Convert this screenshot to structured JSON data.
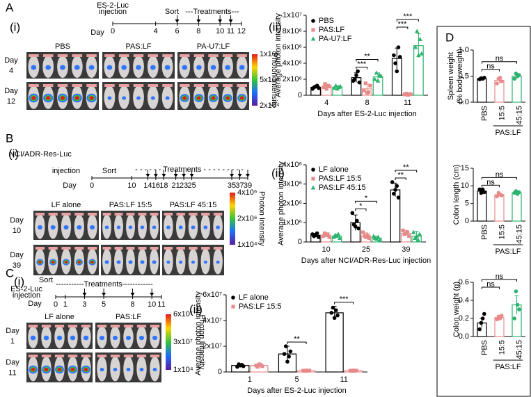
{
  "panels": {
    "A": {
      "label": "A",
      "sub_i": "(i)",
      "sub_ii": "(ii)",
      "timeline": {
        "pre": [
          "ES-2-Luc",
          "injection"
        ],
        "sort": "Sort",
        "treatments": "---Treatments---",
        "day": "Day",
        "days": [
          0,
          4,
          6,
          8,
          10,
          11,
          12
        ]
      },
      "images": {
        "columns": [
          "PBS",
          "PAS:LF",
          "PA-U7:LF"
        ],
        "rows": [
          [
            "Day",
            "4"
          ],
          [
            "Day",
            "12"
          ]
        ],
        "scale": [
          "1x10⁷",
          "5x10⁶",
          "2x10⁴"
        ],
        "scale_title": "Photon Intensity"
      }
    },
    "B": {
      "label": "B",
      "sub_i": "(i)",
      "sub_ii": "(ii)",
      "timeline": {
        "pre": [
          "NCI/ADR-Res-Luc",
          "injection"
        ],
        "sort": "Sort",
        "treatments": "- - - - - -  Treatments  - - - - - - - - -",
        "day": "Day",
        "days": [
          0,
          10,
          14,
          16,
          18,
          21,
          23,
          25,
          35,
          37,
          39
        ]
      },
      "images": {
        "columns": [
          "LF alone",
          "PAS:LF 15:5",
          "PAS:LF 45:15"
        ],
        "rows": [
          [
            "Day",
            "10"
          ],
          [
            "Day",
            "39"
          ]
        ],
        "scale": [
          "4x10⁶",
          "2x10⁶",
          "1x10⁴"
        ],
        "scale_title": "Photon Intensity"
      }
    },
    "C": {
      "label": "C",
      "sub_i": "(i)",
      "sub_ii": "(ii)",
      "timeline": {
        "pre": [
          "ES-2-Luc",
          "injection"
        ],
        "sort": "Sort",
        "treatments": "-----------Treatments------------",
        "day": "Day",
        "days": [
          0,
          1,
          3,
          5,
          8,
          10,
          11
        ]
      },
      "images": {
        "columns": [
          "LF alone",
          "PAS:LF"
        ],
        "rows": [
          [
            "Day",
            "1"
          ],
          [
            "Day",
            "11"
          ]
        ],
        "scale": [
          "6x10⁷",
          "3x10⁷",
          "1x10⁴"
        ],
        "scale_title": "Photon Intensity"
      }
    },
    "D": {
      "label": "D"
    }
  },
  "chart_data": [
    {
      "type": "bar",
      "y_label": [
        "Average photon intensity"
      ],
      "x_label": "Days after ES-2-Luc injection",
      "legend": "upper left",
      "categories": [
        "4",
        "8",
        "11"
      ],
      "ylim": [
        0,
        10000000
      ],
      "yticks": [
        0,
        {
          "value": 2000000,
          "label": "2x10⁶"
        },
        {
          "value": 4000000,
          "label": "4x10⁶"
        },
        {
          "value": 6000000,
          "label": "6x10⁶"
        },
        {
          "value": 8000000,
          "label": "8x10⁶"
        },
        {
          "value": 10000000,
          "label": "1x10⁷"
        }
      ],
      "series": [
        {
          "name": "PBS",
          "color": "#000000",
          "marker": "circle",
          "values": [
            1000000,
            2200000,
            4600000
          ],
          "errors": [
            150000,
            600000,
            1300000
          ],
          "points": [
            [
              800000,
              1000000,
              1100000,
              1200000,
              900000
            ],
            [
              1800000,
              2000000,
              2500000,
              3000000,
              1600000
            ],
            [
              5000000,
              4000000,
              3000000,
              6000000,
              4800000
            ]
          ]
        },
        {
          "name": "PAS:LF",
          "color": "#e88a8a",
          "marker": "square",
          "values": [
            1100000,
            800000,
            120000
          ],
          "errors": [
            300000,
            600000,
            50000
          ],
          "points": [
            [
              1000000,
              1400000,
              800000,
              1200000,
              1100000
            ],
            [
              600000,
              1500000,
              300000,
              400000,
              1200000
            ],
            [
              100000,
              200000,
              50000,
              100000,
              150000
            ]
          ]
        },
        {
          "name": "PA-U7:LF",
          "color": "#2db36f",
          "marker": "triangle",
          "values": [
            1000000,
            2300000,
            6200000
          ],
          "errors": [
            200000,
            500000,
            1500000
          ],
          "points": [
            [
              900000,
              1200000,
              800000,
              1000000,
              1100000
            ],
            [
              2000000,
              2800000,
              1800000,
              2500000,
              2400000
            ],
            [
              6000000,
              8000000,
              5000000,
              7000000,
              5200000
            ]
          ]
        }
      ],
      "annotations": [
        {
          "text": "***",
          "category": 1
        },
        {
          "text": "**",
          "category": 1
        },
        {
          "text": "***",
          "category": 2
        },
        {
          "text": "***",
          "category": 2
        }
      ]
    },
    {
      "type": "bar",
      "y_label": [
        "Average photon intensity"
      ],
      "x_label": "Days after NCI/ADR-Res-Luc injection",
      "legend": "upper left",
      "categories": [
        "10",
        "25",
        "39"
      ],
      "ylim": [
        0,
        4000000
      ],
      "yticks": [
        0,
        {
          "value": 1000000,
          "label": "1x10⁶"
        },
        {
          "value": 2000000,
          "label": "2x10⁶"
        },
        {
          "value": 3000000,
          "label": "3x10⁶"
        },
        {
          "value": 4000000,
          "label": "4x10⁶"
        }
      ],
      "series": [
        {
          "name": "LF alone",
          "color": "#000000",
          "marker": "circle",
          "values": [
            350000,
            1000000,
            2700000
          ],
          "errors": [
            100000,
            400000,
            350000
          ],
          "points": [
            [
              400000,
              300000,
              350000,
              450000,
              250000
            ],
            [
              1500000,
              900000,
              800000,
              1100000,
              700000
            ],
            [
              3100000,
              2500000,
              2700000,
              2900000,
              2300000
            ]
          ]
        },
        {
          "name": "PAS:LF 15:5",
          "color": "#e88a8a",
          "marker": "square",
          "values": [
            350000,
            320000,
            450000
          ],
          "errors": [
            100000,
            150000,
            150000
          ],
          "points": [
            [
              300000,
              450000,
              350000,
              400000,
              250000
            ],
            [
              500000,
              300000,
              250000,
              350000,
              200000
            ],
            [
              600000,
              400000,
              450000,
              500000,
              300000
            ]
          ]
        },
        {
          "name": "PAS:LF 45:15",
          "color": "#2db36f",
          "marker": "triangle",
          "values": [
            300000,
            200000,
            300000
          ],
          "errors": [
            100000,
            100000,
            250000
          ],
          "points": [
            [
              250000,
              350000,
              300000,
              400000,
              200000
            ],
            [
              300000,
              200000,
              150000,
              250000,
              100000
            ],
            [
              500000,
              200000,
              300000,
              100000,
              400000
            ]
          ]
        }
      ],
      "annotations": [
        {
          "text": "*",
          "category": 1
        },
        {
          "text": "*",
          "category": 1
        },
        {
          "text": "**",
          "category": 2
        },
        {
          "text": "**",
          "category": 2
        }
      ]
    },
    {
      "type": "bar",
      "y_label": [
        "Average photon intensity"
      ],
      "x_label": "Days after ES-2-Luc injection",
      "legend": "upper left",
      "categories": [
        "1",
        "5",
        "11"
      ],
      "ylim": [
        0,
        60000000
      ],
      "yticks": [
        0,
        {
          "value": 20000000,
          "label": "2x10⁷"
        },
        {
          "value": 40000000,
          "label": "4x10⁷"
        },
        {
          "value": 60000000,
          "label": "6x10⁷"
        }
      ],
      "series": [
        {
          "name": "LF alone",
          "color": "#000000",
          "marker": "circle",
          "values": [
            5000000,
            14000000,
            46000000
          ],
          "errors": [
            1500000,
            6000000,
            5000000
          ],
          "points": [
            [
              4000000,
              6000000,
              5000000,
              5500000,
              4500000
            ],
            [
              14000000,
              20000000,
              8000000,
              12000000,
              16000000
            ],
            [
              46000000,
              50000000,
              42000000,
              48000000,
              44000000
            ]
          ]
        },
        {
          "name": "PAS:LF 15:5",
          "color": "#e88a8a",
          "marker": "square",
          "values": [
            5000000,
            1000000,
            1000000
          ],
          "errors": [
            1200000,
            200000,
            200000
          ],
          "points": [
            [
              5000000,
              4000000,
              6000000,
              5500000,
              4500000
            ],
            [
              1000000,
              800000,
              1200000,
              900000,
              1100000
            ],
            [
              1000000,
              800000,
              1200000,
              900000,
              1100000
            ]
          ]
        }
      ],
      "annotations": [
        {
          "text": "**",
          "category": 1
        },
        {
          "text": "***",
          "category": 2
        }
      ]
    },
    {
      "type": "bar",
      "y_label": [
        "Spleen weight",
        "(% body weight)"
      ],
      "categories": [
        "PBS",
        "15:5",
        "45:15"
      ],
      "group_label": "PAS:LF",
      "ylim": [
        0,
        1
      ],
      "yticks": [
        {
          "value": 0,
          "label": "0.0"
        },
        0.5,
        {
          "value": 1,
          "label": "1.0"
        }
      ],
      "colors": [
        "#000000",
        "#e88a8a",
        "#2db36f"
      ],
      "values": [
        0.45,
        0.42,
        0.5
      ],
      "errors": [
        0.03,
        0.05,
        0.05
      ],
      "points": [
        [
          0.44,
          0.46,
          0.45,
          0.47
        ],
        [
          0.36,
          0.45,
          0.47,
          0.4
        ],
        [
          0.45,
          0.55,
          0.5,
          0.52
        ]
      ],
      "annotations": [
        {
          "text": "ns"
        },
        {
          "text": "ns"
        }
      ]
    },
    {
      "type": "bar",
      "y_label": [
        "Colon length (cm)"
      ],
      "categories": [
        "PBS",
        "15:5",
        "45:15"
      ],
      "group_label": "PAS:LF",
      "ylim": [
        0,
        15
      ],
      "yticks": [
        0,
        5,
        10,
        15
      ],
      "colors": [
        "#000000",
        "#e88a8a",
        "#2db36f"
      ],
      "values": [
        8.5,
        7.5,
        8
      ],
      "errors": [
        0.5,
        0.5,
        0.4
      ],
      "points": [
        [
          9,
          8,
          9,
          8.2
        ],
        [
          7,
          8,
          7.5,
          7.3
        ],
        [
          8,
          8.5,
          7.7,
          8.2
        ]
      ],
      "annotations": [
        {
          "text": "ns"
        },
        {
          "text": "ns"
        }
      ]
    },
    {
      "type": "bar",
      "y_label": [
        "Colon weight (g)"
      ],
      "categories": [
        "PBS",
        "15:5",
        "45:15"
      ],
      "group_label": "PAS:LF",
      "ylim": [
        0,
        0.6
      ],
      "yticks": [
        {
          "value": 0,
          "label": "0.0"
        },
        0.2,
        0.4,
        0.6
      ],
      "colors": [
        "#000000",
        "#e88a8a",
        "#2db36f"
      ],
      "values": [
        0.15,
        0.21,
        0.35
      ],
      "errors": [
        0.05,
        0.02,
        0.1
      ],
      "points": [
        [
          0.08,
          0.15,
          0.2,
          0.25
        ],
        [
          0.19,
          0.22,
          0.2,
          0.23
        ],
        [
          0.2,
          0.5,
          0.35,
          0.3
        ]
      ],
      "annotations": [
        {
          "text": "ns"
        },
        {
          "text": "ns"
        }
      ]
    }
  ]
}
